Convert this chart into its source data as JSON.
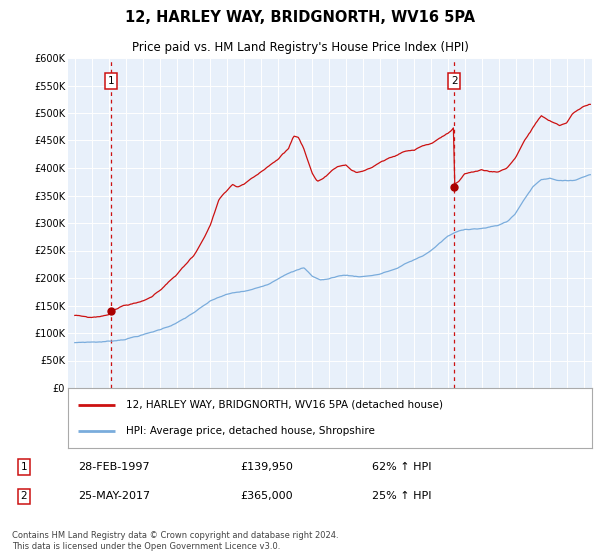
{
  "title": "12, HARLEY WAY, BRIDGNORTH, WV16 5PA",
  "subtitle": "Price paid vs. HM Land Registry's House Price Index (HPI)",
  "legend_line1": "12, HARLEY WAY, BRIDGNORTH, WV16 5PA (detached house)",
  "legend_line2": "HPI: Average price, detached house, Shropshire",
  "note1_date": "28-FEB-1997",
  "note1_price": "£139,950",
  "note1_change": "62% ↑ HPI",
  "note2_date": "25-MAY-2017",
  "note2_price": "£365,000",
  "note2_change": "25% ↑ HPI",
  "footer": "Contains HM Land Registry data © Crown copyright and database right 2024.\nThis data is licensed under the Open Government Licence v3.0.",
  "hpi_color": "#7aacdc",
  "property_color": "#cc1111",
  "vline_color": "#cc1111",
  "dot_color": "#aa0000",
  "background_color": "#ddeeff",
  "chart_bg": "#e8f0fa",
  "ylim": [
    0,
    600000
  ],
  "ytick_labels": [
    "£0",
    "£50K",
    "£100K",
    "£150K",
    "£200K",
    "£250K",
    "£300K",
    "£350K",
    "£400K",
    "£450K",
    "£500K",
    "£550K",
    "£600K"
  ],
  "ytick_vals": [
    0,
    50000,
    100000,
    150000,
    200000,
    250000,
    300000,
    350000,
    400000,
    450000,
    500000,
    550000,
    600000
  ],
  "purchase1_year": 1997.15,
  "purchase1_price": 139950,
  "purchase2_year": 2017.38,
  "purchase2_price": 365000,
  "xlim_left": 1994.6,
  "xlim_right": 2025.5
}
